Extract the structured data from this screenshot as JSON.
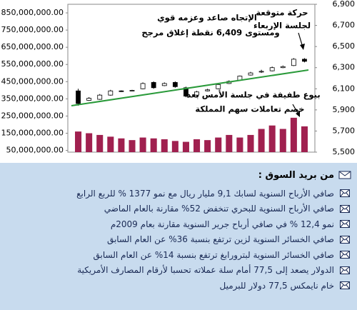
{
  "chart_data": {
    "type": "candlestick",
    "ylim": [
      40000000,
      900000000
    ],
    "yticks": [
      {
        "value": 850000000,
        "label": "850,000,000.00"
      },
      {
        "value": 750000000,
        "label": "750,000,000.00"
      },
      {
        "value": 650000000,
        "label": "650,000,000.00"
      },
      {
        "value": 550000000,
        "label": "550,000,000.00"
      },
      {
        "value": 450000000,
        "label": "450,000,000.00"
      },
      {
        "value": 350000000,
        "label": "350,000,000.00"
      },
      {
        "value": 250000000,
        "label": "250,000,000.00"
      },
      {
        "value": 150000000,
        "label": "150,000,000.00"
      },
      {
        "value": 50000000,
        "label": "50,000,000.00"
      }
    ],
    "y2lim": [
      5500,
      6900
    ],
    "y2ticks": [
      {
        "value": 6900,
        "label": "6,900"
      },
      {
        "value": 6700,
        "label": "6,700"
      },
      {
        "value": 6500,
        "label": "6,500"
      },
      {
        "value": 6300,
        "label": "6,300"
      },
      {
        "value": 6100,
        "label": "6,100"
      },
      {
        "value": 5900,
        "label": "5,900"
      },
      {
        "value": 5700,
        "label": "5,700"
      },
      {
        "value": 5500,
        "label": "5,500"
      }
    ],
    "volume": {
      "color": "#a0204f",
      "values": [
        160000000,
        150000000,
        140000000,
        130000000,
        120000000,
        110000000,
        125000000,
        120000000,
        115000000,
        105000000,
        100000000,
        115000000,
        110000000,
        125000000,
        140000000,
        125000000,
        140000000,
        175000000,
        195000000,
        175000000,
        240000000,
        190000000
      ]
    },
    "candles": {
      "up_color": "#ffffff",
      "down_color": "#000000",
      "open": [
        6080,
        5990,
        6000,
        6040,
        6080,
        6080,
        6100,
        6160,
        6130,
        6160,
        6110,
        6040,
        6080,
        6100,
        6150,
        6180,
        6230,
        6260,
        6270,
        6300,
        6320,
        6380
      ],
      "high": [
        6100,
        6020,
        6050,
        6090,
        6085,
        6090,
        6160,
        6170,
        6160,
        6170,
        6120,
        6080,
        6100,
        6150,
        6180,
        6225,
        6260,
        6280,
        6310,
        6320,
        6390,
        6390
      ],
      "low": [
        5940,
        5985,
        5995,
        6035,
        6070,
        6075,
        6095,
        6100,
        6125,
        6110,
        6020,
        6030,
        6075,
        6095,
        6145,
        6175,
        6225,
        6250,
        6265,
        6295,
        6315,
        6350
      ],
      "close": [
        5960,
        6010,
        6040,
        6080,
        6075,
        6085,
        6150,
        6110,
        6150,
        6120,
        6030,
        6070,
        6090,
        6140,
        6170,
        6220,
        6250,
        6265,
        6300,
        6310,
        6380,
        6360
      ]
    },
    "annotations": [
      [
        "حركة متوقعة",
        "لجلسة الإربعاء"
      ],
      [
        "الإتجاه صاعد وعزمه قوي",
        "ومستوى 6,409 نقطة إغلاق مرجح"
      ],
      [
        "بيوع طفيفة في جلسة الأمس بعد",
        "خصم تعاملات سهم المملكة"
      ]
    ]
  },
  "news": {
    "title": "من بريد السوق :",
    "items": [
      "صافي الأرباح السنوية لسابك 9,1 مليار ريال مع نمو 1377 % للربع الرابع",
      "صافي الأرباح السنوية للبحري تنخفض 52% مقارنة بالعام الماضي",
      "نمو 12,4 % في صافي أرباح جرير السنوية مقارنة بعام 2009م",
      "صافي الخسائر السنوية لزين ترتفع بنسبة 36% عن العام السابق",
      "صافي الخسائر السنوية لبترورابغ ترتفع بنسبة 14% عن العام السابق",
      "الدولار يصعد إلى 77,5 أمام سلة عملاته تحسبا لأرقام المصارف الأمريكية",
      "خام نايمكس 77,5 دولار للبرميل"
    ]
  }
}
